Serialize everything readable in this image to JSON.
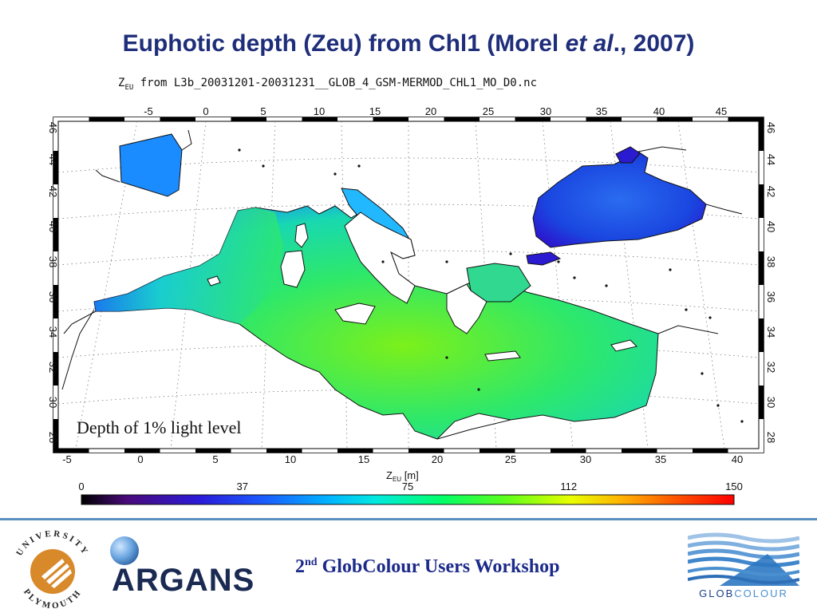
{
  "slide": {
    "title_main": "Euphotic depth (Zeu) from Chl1 (Morel ",
    "title_italic": "et al",
    "title_tail": "., 2007)",
    "workshop": {
      "ordinal": "2",
      "ordinal_sup": "nd",
      "rest": " GlobColour Users Workshop"
    }
  },
  "map": {
    "subtitle_prefix": "Z",
    "subtitle_sub": "EU",
    "subtitle_rest": " from L3b_20031201-20031231__GLOB_4_GSM-MERMOD_CHL1_MO_D0.nc",
    "annotation": "Depth of 1% light level",
    "top_lon_labels": [
      "-5",
      "0",
      "5",
      "10",
      "15",
      "20",
      "25",
      "30",
      "35",
      "40",
      "45"
    ],
    "bottom_lon_labels": [
      "-5",
      "0",
      "5",
      "10",
      "15",
      "20",
      "25",
      "30",
      "35",
      "40"
    ],
    "lat_labels": [
      "46",
      "44",
      "42",
      "40",
      "38",
      "36",
      "34",
      "32",
      "30",
      "28"
    ],
    "colorbar": {
      "label_prefix": "Z",
      "label_sub": "EU",
      "label_rest": " [m]",
      "ticks": [
        "0",
        "37",
        "75",
        "112",
        "150"
      ],
      "range": [
        0,
        150
      ]
    },
    "colors": {
      "land_outline": "#111111",
      "sea_mid": "#2ee86a",
      "sea_coast": "#1e6ff0",
      "black_sea": "#1a46e0"
    }
  },
  "logos": {
    "university": "UNIVERSITY",
    "city": "PLYMOUTH",
    "argans": "ARGANS",
    "globcolour_a": "GLOB",
    "globcolour_b": "COLOUR"
  }
}
